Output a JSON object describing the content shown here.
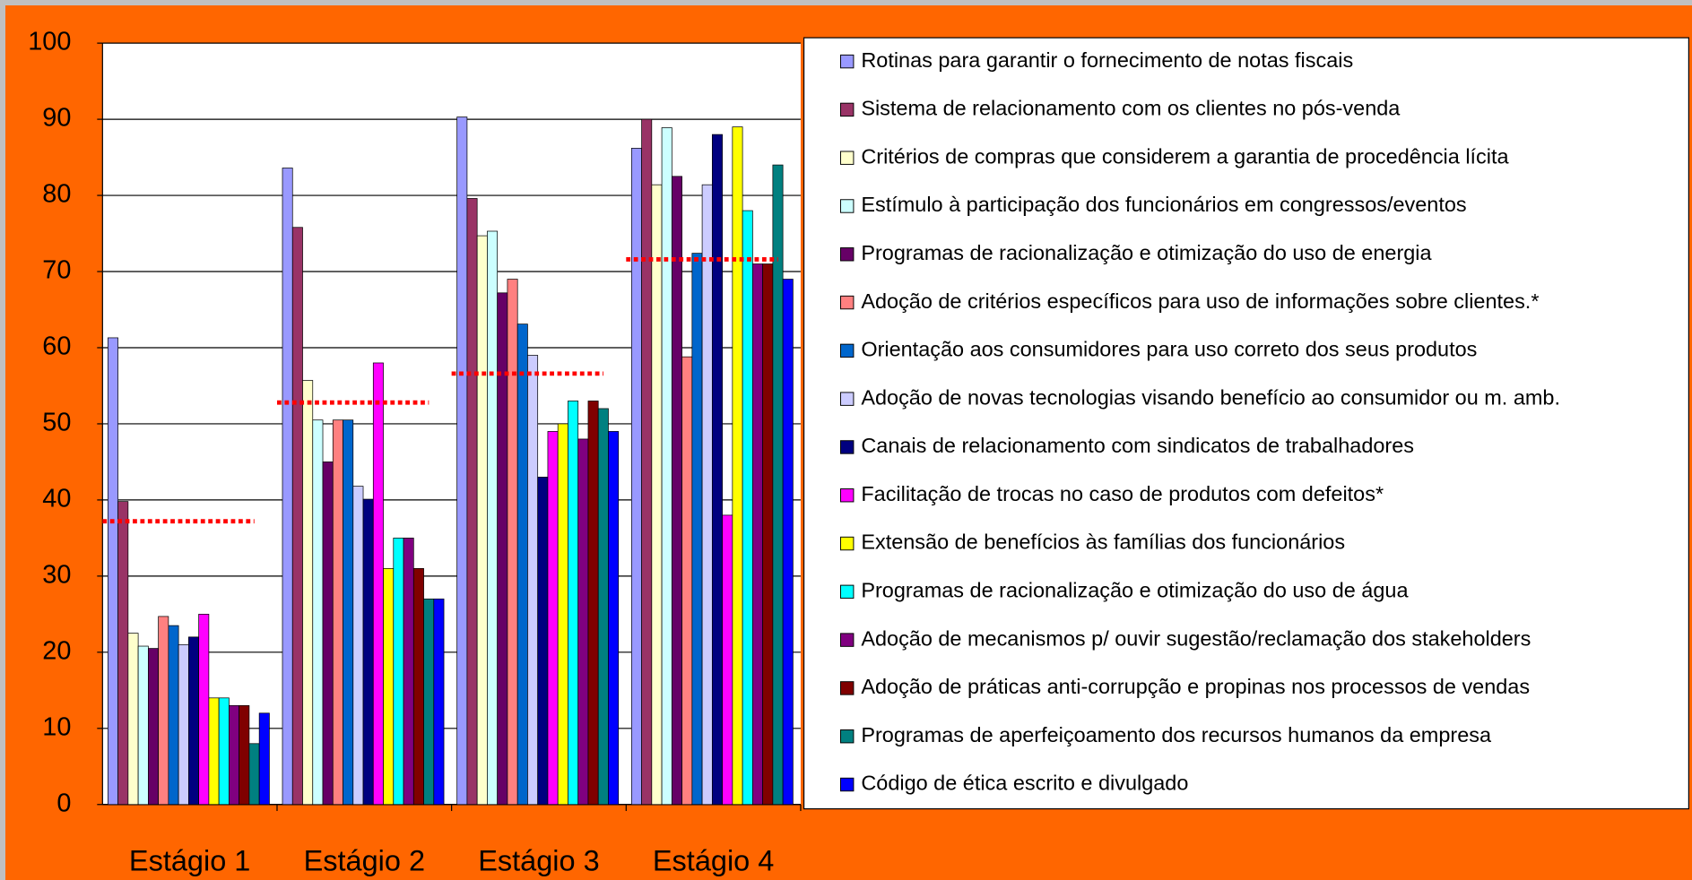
{
  "chart_data": {
    "type": "bar",
    "categories": [
      "Estágio 1",
      "Estágio 2",
      "Estágio 3",
      "Estágio 4"
    ],
    "ylim": [
      0,
      100
    ],
    "yticks": [
      0,
      10,
      20,
      30,
      40,
      50,
      60,
      70,
      80,
      90,
      100
    ],
    "grid": true,
    "reference_lines": [
      37.2,
      52.8,
      56.6,
      71.6
    ],
    "reference_color": "#ff0000",
    "series": [
      {
        "name": "Rotinas para garantir o fornecimento de notas fiscais",
        "color": "#9999ff",
        "values": [
          61.3,
          83.6,
          90.3,
          86.2
        ]
      },
      {
        "name": "Sistema de relacionamento com os clientes no pós-venda",
        "color": "#993366",
        "values": [
          39.8,
          75.8,
          79.6,
          90
        ]
      },
      {
        "name": "Critérios de compras que considerem a garantia de procedência lícita",
        "color": "#ffffcc",
        "values": [
          22.5,
          55.7,
          74.7,
          81.4
        ]
      },
      {
        "name": "Estímulo à participação dos funcionários em congressos/eventos",
        "color": "#ccffff",
        "values": [
          20.8,
          50.5,
          75.3,
          88.9
        ]
      },
      {
        "name": "Programas de racionalização e otimização do uso de energia",
        "color": "#660066",
        "values": [
          20.5,
          45,
          67.2,
          82.5
        ]
      },
      {
        "name": "Adoção de critérios específicos para uso de informações sobre clientes.*",
        "color": "#ff8080",
        "values": [
          24.7,
          50.5,
          69,
          58.8
        ]
      },
      {
        "name": "Orientação aos consumidores para uso correto dos seus produtos",
        "color": "#0066cc",
        "values": [
          23.5,
          50.5,
          63.1,
          72.4
        ]
      },
      {
        "name": "Adoção de novas tecnologias visando benefício ao consumidor ou m. amb.",
        "color": "#ccccff",
        "values": [
          21,
          41.8,
          59,
          81.4
        ]
      },
      {
        "name": "Canais de relacionamento com sindicatos de trabalhadores",
        "color": "#000080",
        "values": [
          22,
          40.1,
          43,
          88
        ]
      },
      {
        "name": "Facilitação de trocas no caso de produtos com defeitos*",
        "color": "#ff00ff",
        "values": [
          25,
          58,
          49,
          38
        ]
      },
      {
        "name": "Extensão de benefícios às famílias dos funcionários",
        "color": "#ffff00",
        "values": [
          14,
          31,
          50,
          89
        ]
      },
      {
        "name": "Programas de racionalização e otimização do uso de água",
        "color": "#00ffff",
        "values": [
          14,
          35,
          53,
          78
        ]
      },
      {
        "name": "Adoção de mecanismos p/ ouvir sugestão/reclamação dos stakeholders",
        "color": "#800080",
        "values": [
          13,
          35,
          48,
          71
        ]
      },
      {
        "name": "Adoção de práticas anti-corrupção e propinas nos processos de vendas",
        "color": "#800000",
        "values": [
          13,
          31,
          53,
          71
        ]
      },
      {
        "name": "Programas de aperfeiçoamento dos recursos humanos da empresa",
        "color": "#008080",
        "values": [
          8,
          27,
          52,
          84
        ]
      },
      {
        "name": "Código de ética escrito e divulgado",
        "color": "#0000ff",
        "values": [
          12,
          27,
          49,
          69
        ]
      }
    ]
  }
}
